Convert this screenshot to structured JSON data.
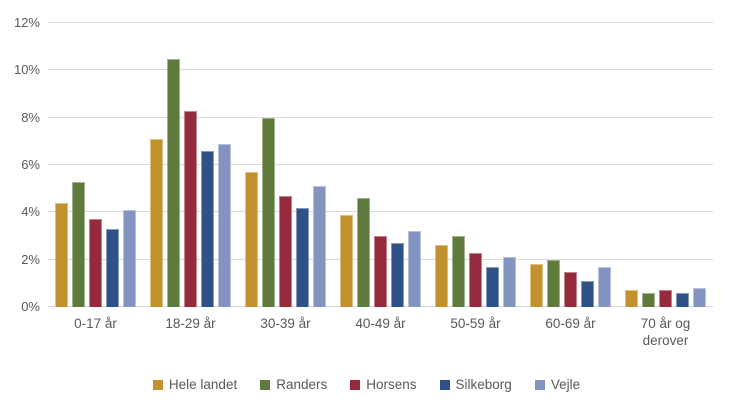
{
  "colors": {
    "background": "#FFFFFF",
    "axis_text": "#595959",
    "gridline": "#D9D9D9"
  },
  "chart_data": {
    "type": "bar",
    "title": "",
    "categories": [
      "0-17 år",
      "18-29 år",
      "30-39 år",
      "40-49 år",
      "50-59 år",
      "60-69 år",
      "70 år og derover"
    ],
    "series": [
      {
        "name": "Hele landet",
        "color": "#C3922E",
        "values": [
          4.4,
          7.1,
          5.7,
          3.9,
          2.6,
          1.8,
          0.7
        ]
      },
      {
        "name": "Randers",
        "color": "#5F7A3D",
        "values": [
          5.3,
          10.5,
          8.0,
          4.6,
          3.0,
          2.0,
          0.6
        ]
      },
      {
        "name": "Horsens",
        "color": "#942A3C",
        "values": [
          3.7,
          8.3,
          4.7,
          3.0,
          2.3,
          1.5,
          0.7
        ]
      },
      {
        "name": "Silkeborg",
        "color": "#2E5187",
        "values": [
          3.3,
          6.6,
          4.2,
          2.7,
          1.7,
          1.1,
          0.6
        ]
      },
      {
        "name": "Vejle",
        "color": "#8494C0",
        "values": [
          4.1,
          6.9,
          5.1,
          3.2,
          2.1,
          1.7,
          0.8
        ]
      }
    ],
    "ylim": [
      0,
      12
    ],
    "ytick_values": [
      0,
      2,
      4,
      6,
      8,
      10,
      12
    ],
    "ytick_labels": [
      "0%",
      "2%",
      "4%",
      "6%",
      "8%",
      "10%",
      "12%"
    ],
    "y_unit": "%",
    "grid": true,
    "legend_position": "bottom"
  }
}
